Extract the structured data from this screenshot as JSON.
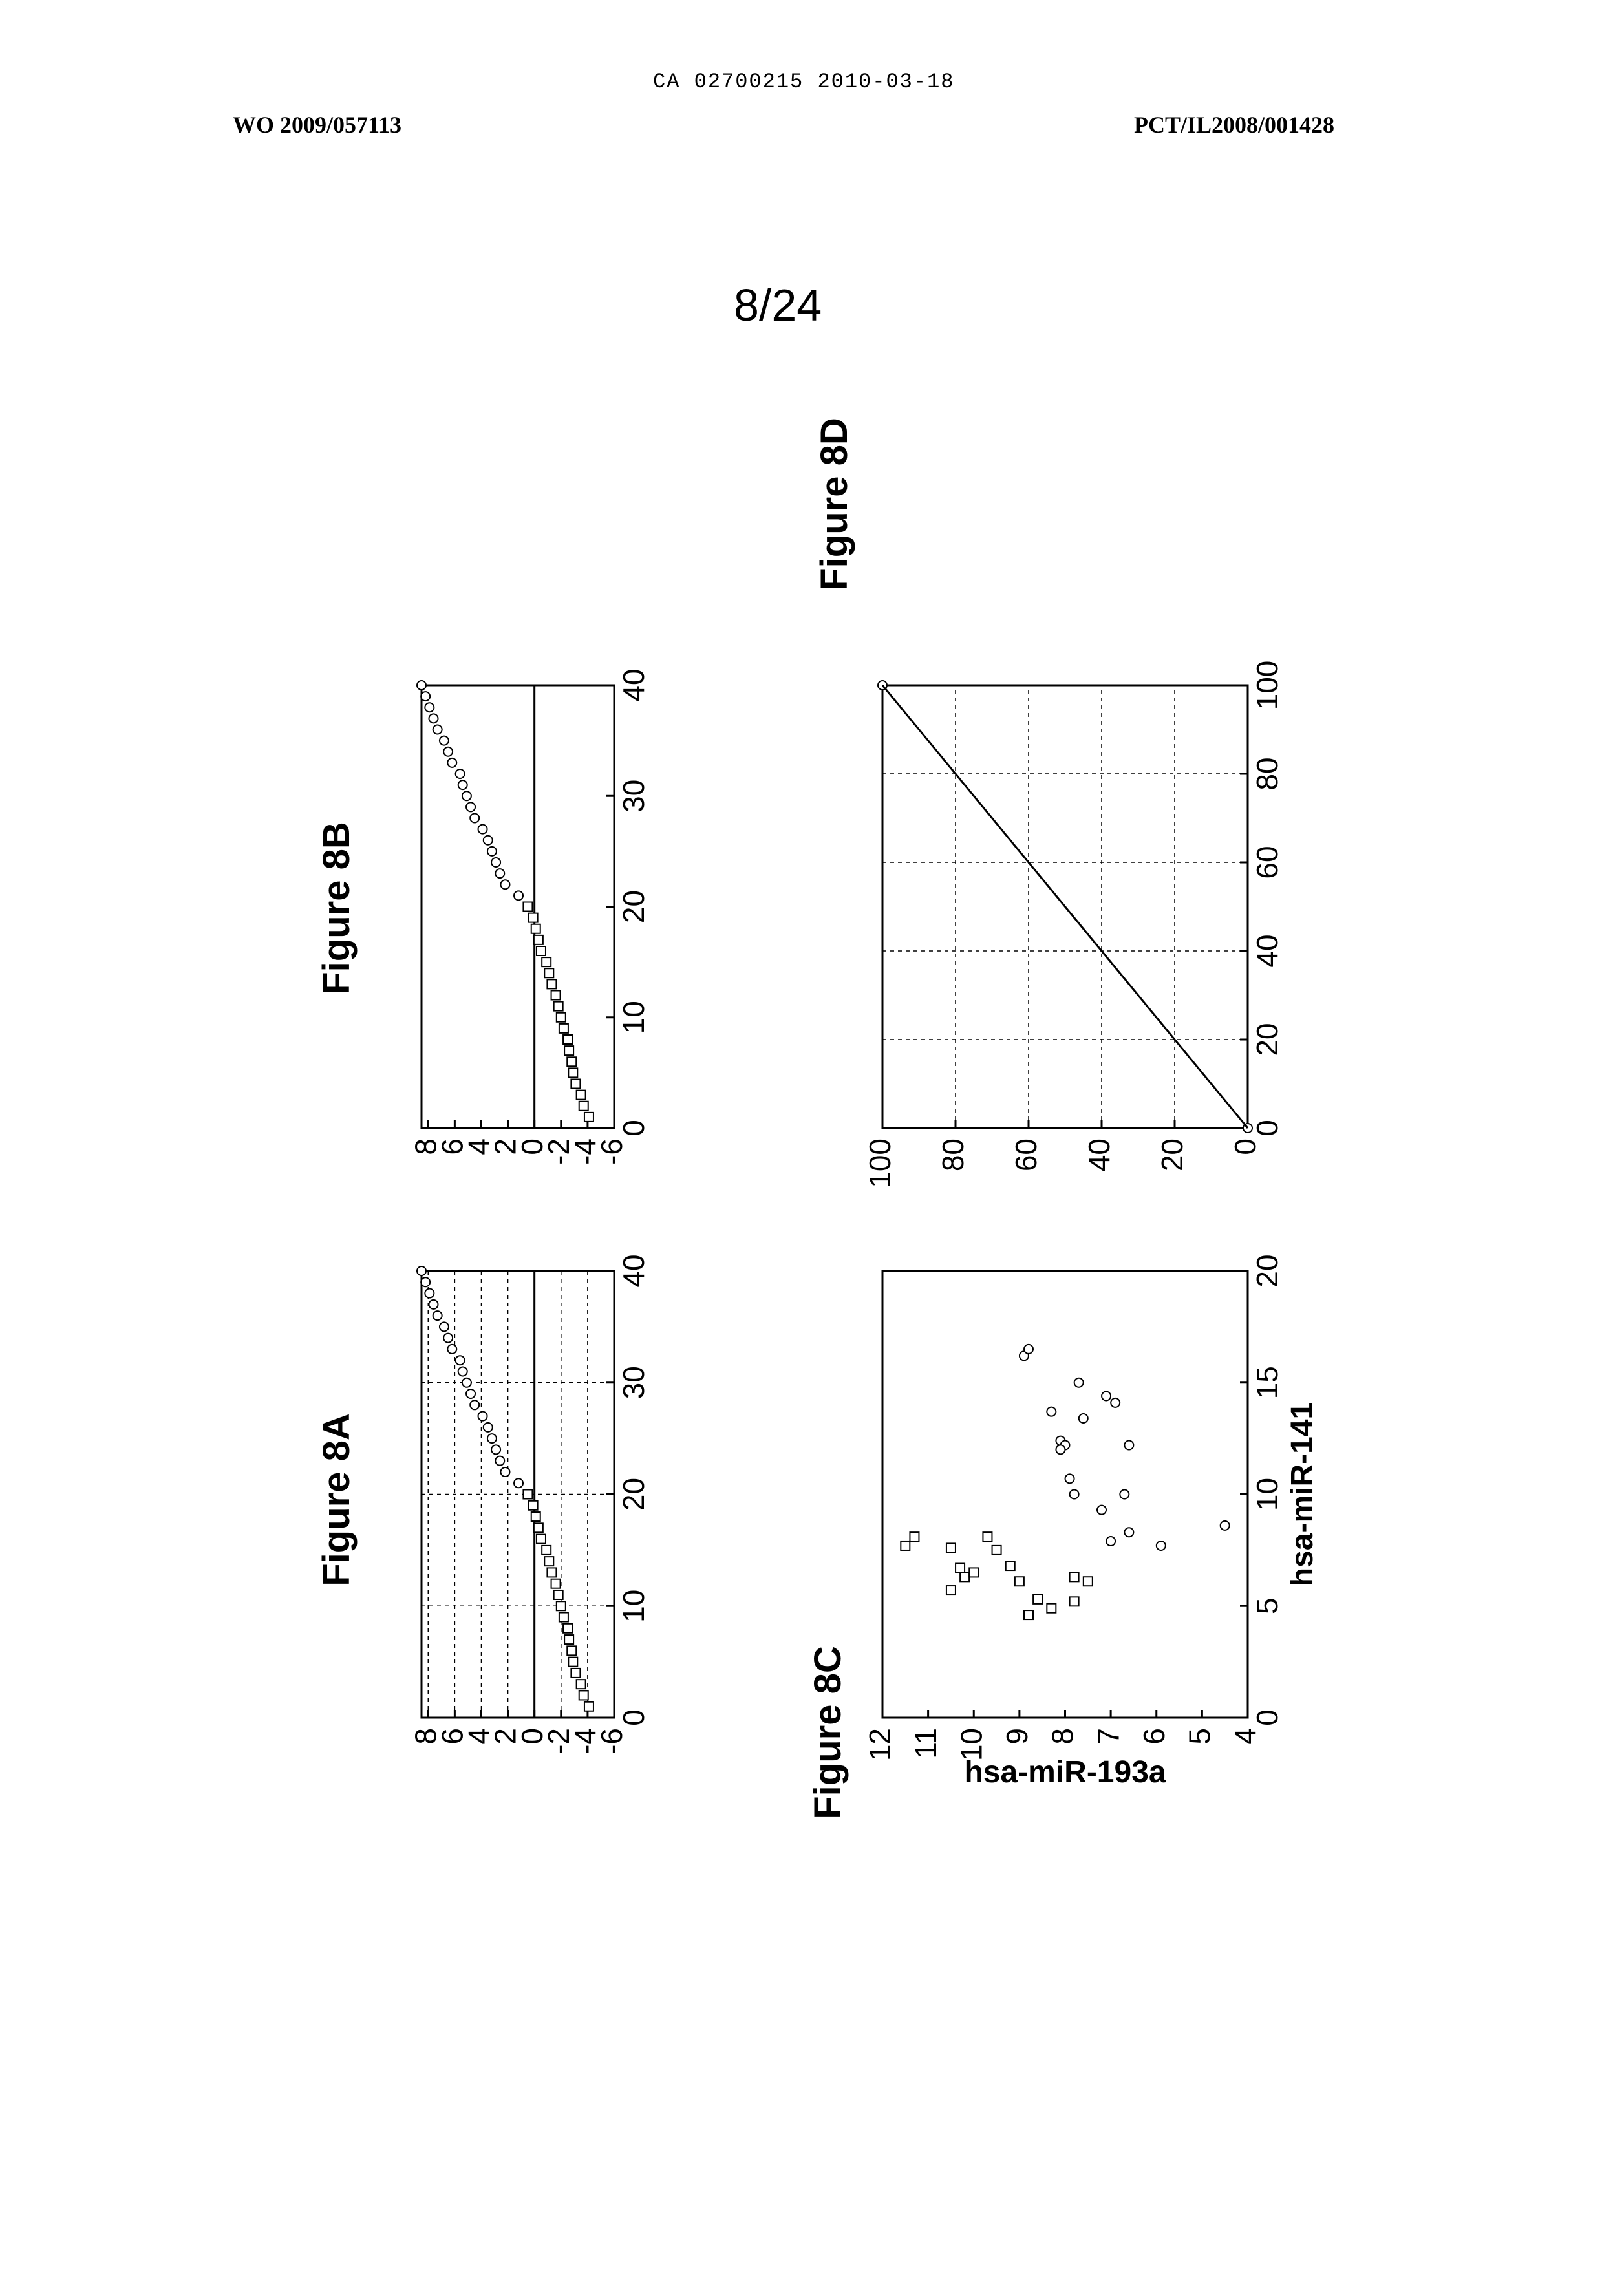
{
  "header": {
    "stamp": "CA 02700215 2010-03-18",
    "publication_number": "WO 2009/057113",
    "application_number": "PCT/IL2008/001428",
    "sheet": "8/24"
  },
  "chart_data": [
    {
      "id": "8A",
      "type": "scatter",
      "title": "Figure 8A",
      "grid": true,
      "xlabel": "",
      "ylabel": "",
      "xlim": [
        0,
        40
      ],
      "ylim": [
        -6,
        8.5
      ],
      "xticks": [
        "0",
        "10",
        "20",
        "30",
        "40"
      ],
      "yticks": [
        "-6",
        "-4",
        "-2",
        "0",
        "2",
        "4",
        "6",
        "8"
      ],
      "zero_line": true,
      "series": [
        {
          "marker": "square",
          "points": [
            [
              1,
              -4.1
            ],
            [
              2,
              -3.7
            ],
            [
              3,
              -3.5
            ],
            [
              4,
              -3.1
            ],
            [
              5,
              -2.9
            ],
            [
              6,
              -2.8
            ],
            [
              7,
              -2.6
            ],
            [
              8,
              -2.5
            ],
            [
              9,
              -2.2
            ],
            [
              10,
              -2.0
            ],
            [
              11,
              -1.8
            ],
            [
              12,
              -1.6
            ],
            [
              13,
              -1.3
            ],
            [
              14,
              -1.1
            ],
            [
              15,
              -0.9
            ],
            [
              16,
              -0.5
            ],
            [
              17,
              -0.3
            ],
            [
              18,
              -0.1
            ],
            [
              19,
              0.1
            ],
            [
              20,
              0.5
            ]
          ]
        },
        {
          "marker": "circle",
          "points": [
            [
              21,
              1.2
            ],
            [
              22,
              2.2
            ],
            [
              23,
              2.6
            ],
            [
              24,
              2.9
            ],
            [
              25,
              3.2
            ],
            [
              26,
              3.5
            ],
            [
              27,
              3.9
            ],
            [
              28,
              4.5
            ],
            [
              29,
              4.8
            ],
            [
              30,
              5.1
            ],
            [
              31,
              5.4
            ],
            [
              32,
              5.6
            ],
            [
              33,
              6.2
            ],
            [
              34,
              6.5
            ],
            [
              35,
              6.8
            ],
            [
              36,
              7.3
            ],
            [
              37,
              7.6
            ],
            [
              38,
              7.9
            ],
            [
              39,
              8.2
            ],
            [
              40,
              8.5
            ]
          ]
        }
      ]
    },
    {
      "id": "8B",
      "type": "scatter",
      "title": "Figure 8B",
      "grid": false,
      "xlabel": "",
      "ylabel": "",
      "xlim": [
        0,
        40
      ],
      "ylim": [
        -6,
        8.5
      ],
      "xticks": [
        "0",
        "10",
        "20",
        "30",
        "40"
      ],
      "yticks": [
        "-6",
        "-4",
        "-2",
        "0",
        "2",
        "4",
        "6",
        "8"
      ],
      "zero_line": true,
      "series": [
        {
          "marker": "square",
          "points": [
            [
              1,
              -4.1
            ],
            [
              2,
              -3.7
            ],
            [
              3,
              -3.5
            ],
            [
              4,
              -3.1
            ],
            [
              5,
              -2.9
            ],
            [
              6,
              -2.8
            ],
            [
              7,
              -2.6
            ],
            [
              8,
              -2.5
            ],
            [
              9,
              -2.2
            ],
            [
              10,
              -2.0
            ],
            [
              11,
              -1.8
            ],
            [
              12,
              -1.6
            ],
            [
              13,
              -1.3
            ],
            [
              14,
              -1.1
            ],
            [
              15,
              -0.9
            ],
            [
              16,
              -0.5
            ],
            [
              17,
              -0.3
            ],
            [
              18,
              -0.1
            ],
            [
              19,
              0.1
            ],
            [
              20,
              0.5
            ]
          ]
        },
        {
          "marker": "circle",
          "points": [
            [
              21,
              1.2
            ],
            [
              22,
              2.2
            ],
            [
              23,
              2.6
            ],
            [
              24,
              2.9
            ],
            [
              25,
              3.2
            ],
            [
              26,
              3.5
            ],
            [
              27,
              3.9
            ],
            [
              28,
              4.5
            ],
            [
              29,
              4.8
            ],
            [
              30,
              5.1
            ],
            [
              31,
              5.4
            ],
            [
              32,
              5.6
            ],
            [
              33,
              6.2
            ],
            [
              34,
              6.5
            ],
            [
              35,
              6.8
            ],
            [
              36,
              7.3
            ],
            [
              37,
              7.6
            ],
            [
              38,
              7.9
            ],
            [
              39,
              8.2
            ],
            [
              40,
              8.5
            ]
          ]
        }
      ]
    },
    {
      "id": "8C",
      "type": "scatter",
      "title": "Figure 8C",
      "grid": false,
      "xlabel": "hsa-miR-141",
      "ylabel": "hsa-miR-193a",
      "xlim": [
        0,
        20
      ],
      "ylim": [
        4,
        12
      ],
      "xticks": [
        "0",
        "5",
        "10",
        "15",
        "20"
      ],
      "yticks": [
        "4",
        "5",
        "6",
        "7",
        "8",
        "9",
        "10",
        "11",
        "12"
      ],
      "series": [
        {
          "marker": "square",
          "points": [
            [
              7.7,
              11.5
            ],
            [
              8.1,
              11.3
            ],
            [
              5.7,
              10.5
            ],
            [
              6.3,
              10.2
            ],
            [
              6.7,
              10.3
            ],
            [
              6.5,
              10.0
            ],
            [
              7.6,
              10.5
            ],
            [
              8.1,
              9.7
            ],
            [
              7.5,
              9.5
            ],
            [
              6.8,
              9.2
            ],
            [
              6.1,
              9.0
            ],
            [
              4.6,
              8.8
            ],
            [
              5.3,
              8.6
            ],
            [
              4.9,
              8.3
            ],
            [
              5.2,
              7.8
            ],
            [
              6.3,
              7.8
            ],
            [
              6.1,
              7.5
            ]
          ]
        },
        {
          "marker": "circle",
          "points": [
            [
              16.2,
              8.9
            ],
            [
              16.5,
              8.8
            ],
            [
              15.0,
              7.7
            ],
            [
              14.4,
              7.1
            ],
            [
              14.1,
              6.9
            ],
            [
              13.7,
              8.3
            ],
            [
              13.4,
              7.6
            ],
            [
              12.4,
              8.1
            ],
            [
              12.2,
              8.0
            ],
            [
              12.0,
              8.1
            ],
            [
              12.2,
              6.6
            ],
            [
              10.7,
              7.9
            ],
            [
              10.0,
              6.7
            ],
            [
              10.0,
              7.8
            ],
            [
              9.3,
              7.2
            ],
            [
              8.3,
              6.6
            ],
            [
              7.9,
              7.0
            ],
            [
              7.7,
              5.9
            ],
            [
              8.6,
              4.5
            ]
          ]
        }
      ]
    },
    {
      "id": "8D",
      "type": "line",
      "title": "Figure 8D",
      "grid": true,
      "xlabel": "",
      "ylabel": "",
      "xlim": [
        0,
        100
      ],
      "ylim": [
        0,
        100
      ],
      "xticks": [
        "0",
        "20",
        "40",
        "60",
        "80",
        "100"
      ],
      "yticks": [
        "0",
        "20",
        "40",
        "60",
        "80",
        "100"
      ],
      "series": [
        {
          "marker": "dot",
          "points": [
            [
              0,
              0
            ],
            [
              0,
              100
            ],
            [
              100,
              100
            ]
          ]
        },
        {
          "marker": "none",
          "points": [
            [
              0,
              0
            ],
            [
              100,
              100
            ]
          ]
        }
      ]
    }
  ]
}
